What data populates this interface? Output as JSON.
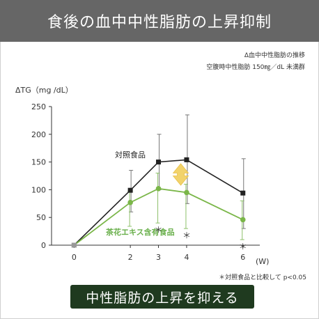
{
  "header": {
    "title": "食後の血中中性脂肪の上昇抑制"
  },
  "notes": {
    "line1": "Δ血中中性脂肪の推移",
    "line2": "空腹時中性脂肪 150㎎／dL 未満群"
  },
  "footnote": "＊対照食品と比較して p<0.05",
  "banner": {
    "text": "中性脂肪の上昇を抑える"
  },
  "colors": {
    "header_bg": "#666666",
    "control": "#222222",
    "tea": "#7ab648",
    "arrow": "#f2d36b",
    "banner_bg": "#1f3a1f"
  },
  "chart_data": {
    "type": "line",
    "ylabel": "ΔTG（mg /dL）",
    "xlabel": "(W)",
    "x": [
      0,
      2,
      3,
      4,
      6
    ],
    "x_ticks": [
      "0",
      "2",
      "3",
      "4",
      "6"
    ],
    "y_ticks": [
      "0",
      "50",
      "100",
      "150",
      "200",
      "250"
    ],
    "ylim": [
      0,
      250
    ],
    "xlim": [
      -0.8,
      6.6
    ],
    "series": [
      {
        "name": "対照食品",
        "marker": "square",
        "values": [
          0,
          99,
          150,
          154,
          94
        ],
        "error_upper": [
          0,
          135,
          200,
          235,
          156
        ],
        "error_lower": [
          0,
          60,
          100,
          75,
          30
        ]
      },
      {
        "name": "茶花エキス含有食品",
        "marker": "circle",
        "values": [
          0,
          77,
          102,
          95,
          46
        ],
        "error_upper": [
          0,
          97,
          130,
          110,
          80
        ],
        "error_lower": [
          0,
          34,
          40,
          30,
          10
        ]
      }
    ],
    "significance_marks": [
      {
        "x": 3,
        "label": "＊"
      },
      {
        "x": 4,
        "label": "＊"
      },
      {
        "x": 6,
        "label": "＊"
      }
    ],
    "grid": false
  }
}
